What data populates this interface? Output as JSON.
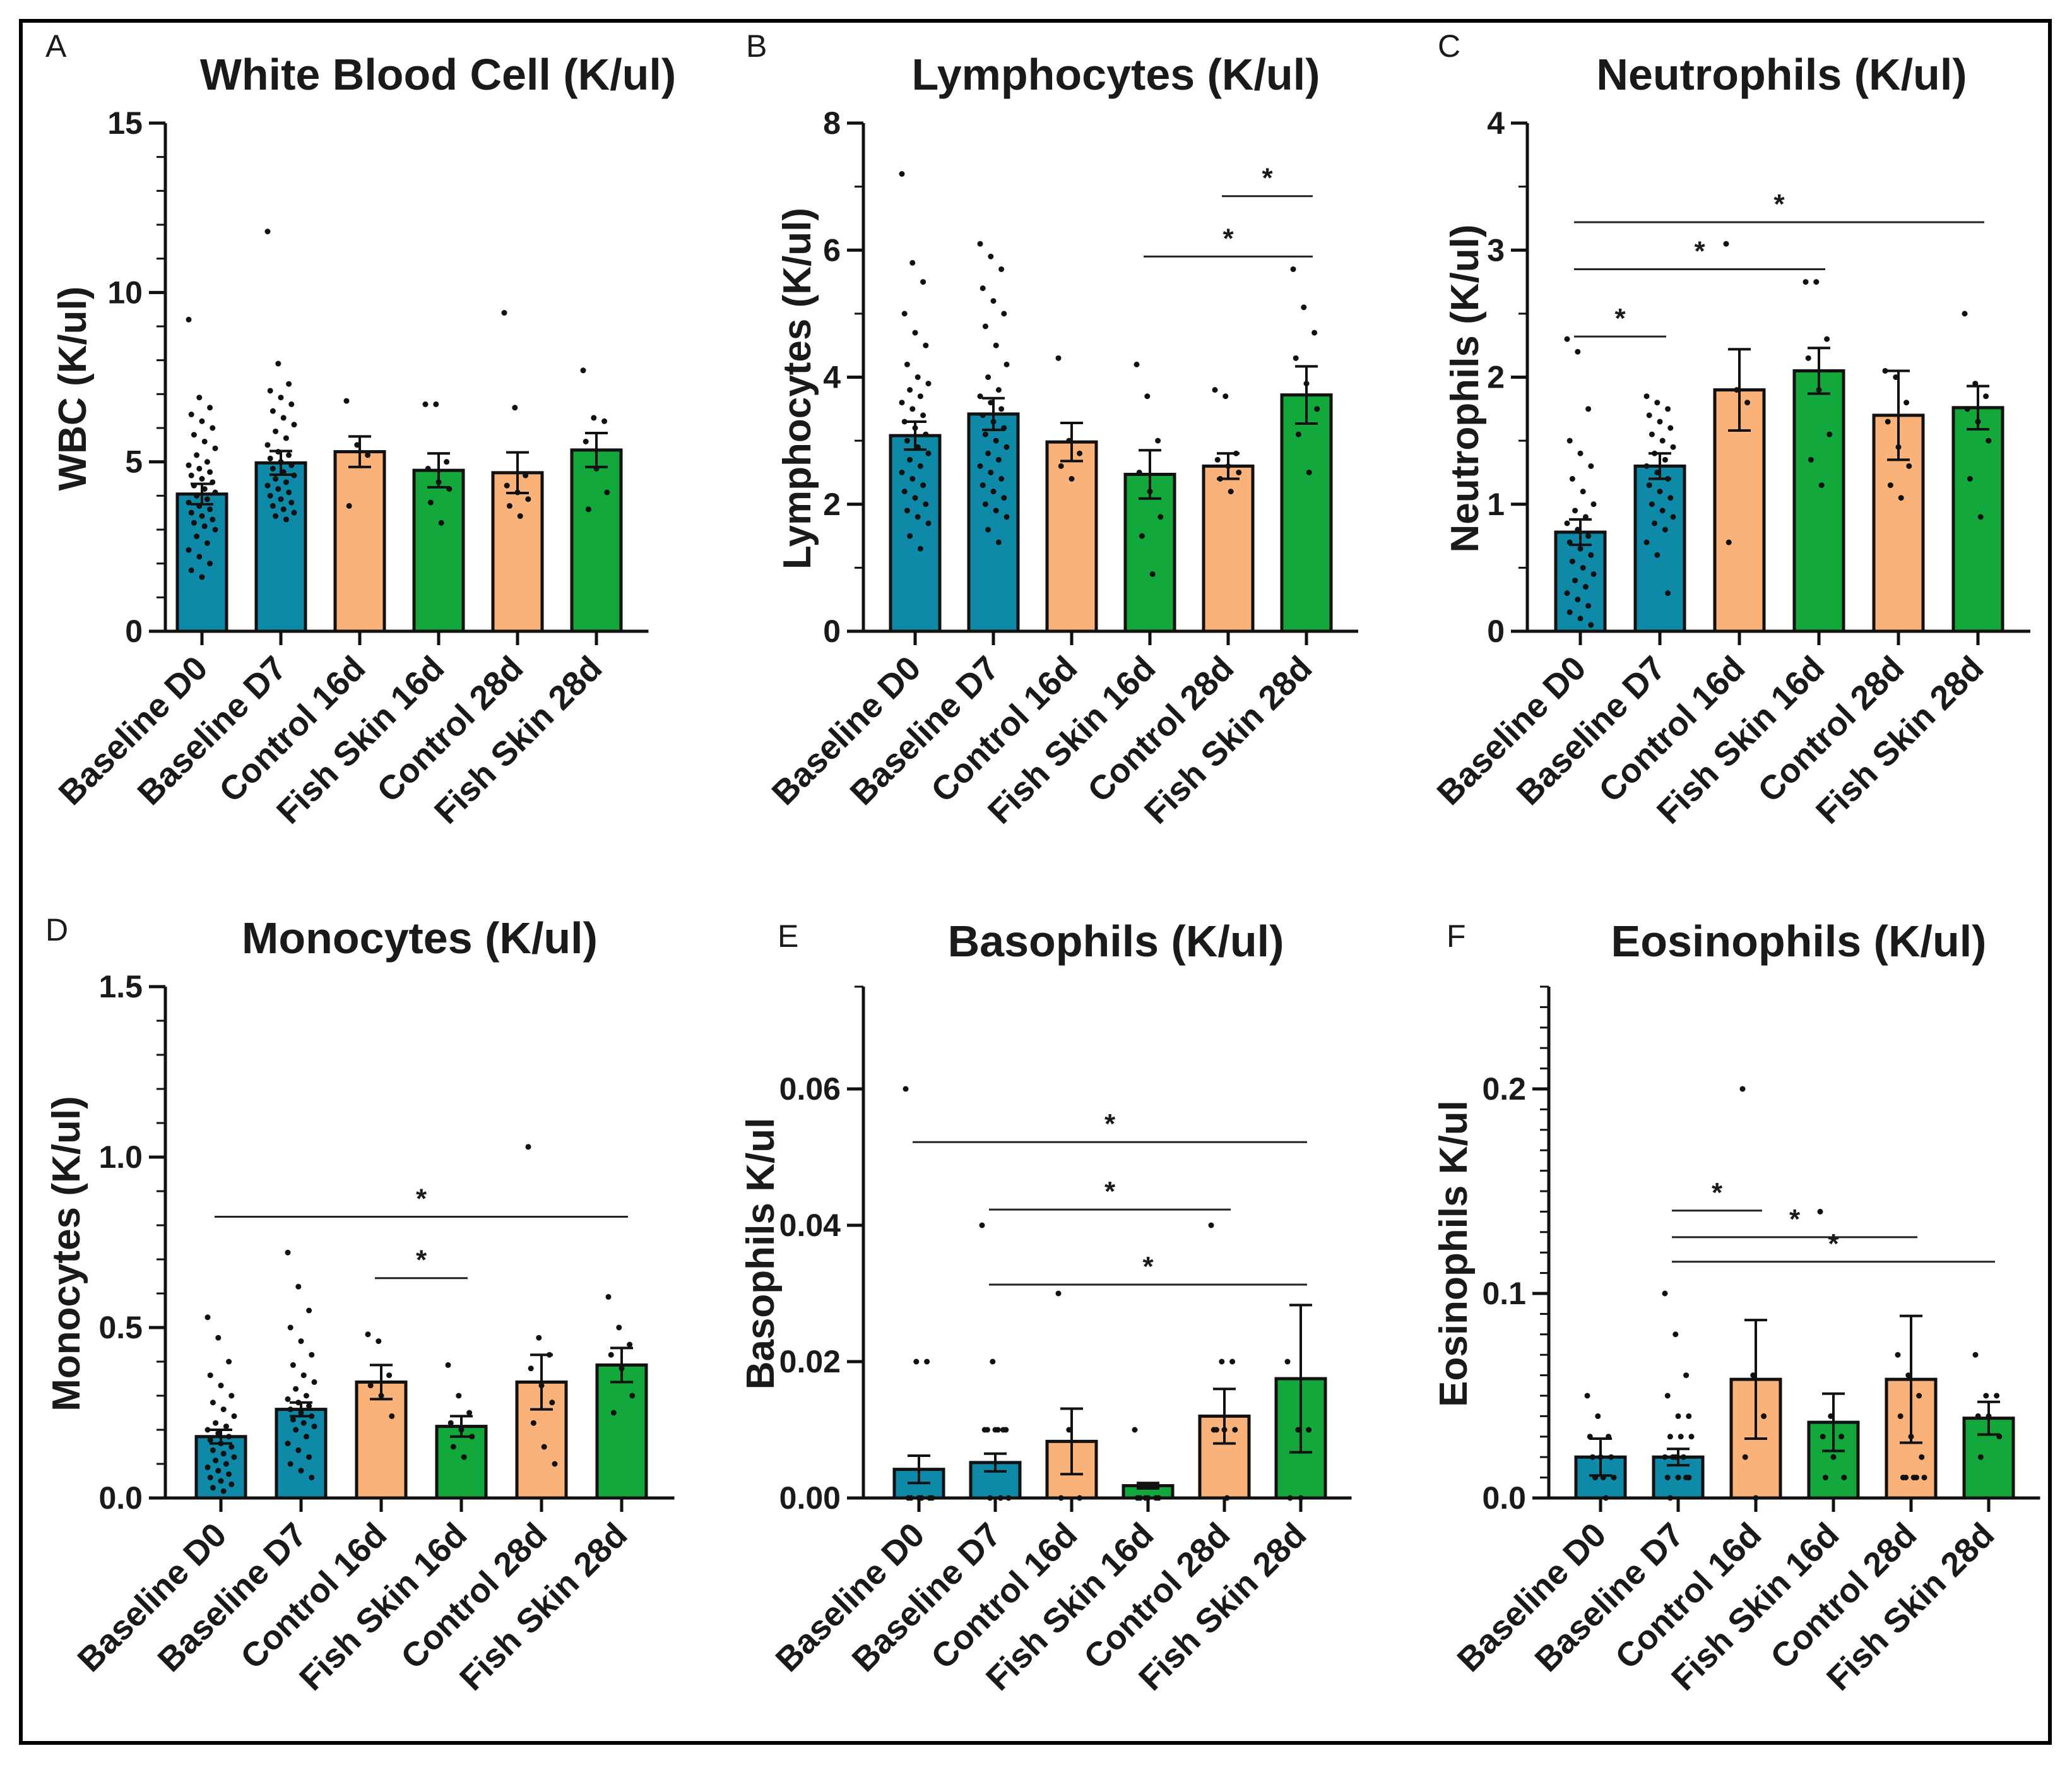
{
  "colors": {
    "baseline": "#0e8aa8",
    "control": "#f9b27a",
    "fish_skin": "#13a83b",
    "stroke": "#111111"
  },
  "chart_data": [
    {
      "letter": "A",
      "type": "bar",
      "title": "White Blood Cell (K/ul)",
      "ylabel": "WBC (K/ul)",
      "categories": [
        "Baseline D0",
        "Baseline D7",
        "Control 16d",
        "Fish Skin 16d",
        "Control 28d",
        "Fish Skin 28d"
      ],
      "values": [
        4.05,
        4.97,
        5.3,
        4.75,
        4.68,
        5.35
      ],
      "errors": [
        0.3,
        0.35,
        0.45,
        0.5,
        0.6,
        0.5
      ],
      "ylim": [
        0,
        15
      ],
      "yticks": [
        0,
        5,
        10,
        15
      ],
      "tick_labels": [
        "0",
        "5",
        "10",
        "15"
      ],
      "minor_ticks": 4,
      "points": [
        [
          9.2,
          6.9,
          6.6,
          6.4,
          6.2,
          6.0,
          5.8,
          5.6,
          5.4,
          5.2,
          5.0,
          4.9,
          4.8,
          4.7,
          4.6,
          4.5,
          4.4,
          4.3,
          4.2,
          4.1,
          4.0,
          3.9,
          3.8,
          3.7,
          3.6,
          3.5,
          3.4,
          3.3,
          3.2,
          3.1,
          3.0,
          2.8,
          2.6,
          2.4,
          2.2,
          2.0,
          1.8,
          1.6
        ],
        [
          11.8,
          7.9,
          7.3,
          7.1,
          6.9,
          6.7,
          6.5,
          6.3,
          6.1,
          5.9,
          5.7,
          5.5,
          5.3,
          5.2,
          5.1,
          5.0,
          4.9,
          4.8,
          4.7,
          4.6,
          4.5,
          4.4,
          4.3,
          4.2,
          4.1,
          4.0,
          3.9,
          3.8,
          3.7,
          3.6,
          3.5,
          3.4,
          3.3
        ],
        [
          6.8,
          5.5,
          5.2,
          3.7
        ],
        [
          6.7,
          6.7,
          5.0,
          4.8,
          4.4,
          4.2,
          3.8,
          3.2
        ],
        [
          9.4,
          6.6,
          4.6,
          4.3,
          4.1,
          3.9,
          3.7,
          3.4
        ],
        [
          7.7,
          6.3,
          6.2,
          5.6,
          4.8,
          4.1,
          3.6
        ]
      ],
      "significance": []
    },
    {
      "letter": "B",
      "type": "bar",
      "title": "Lymphocytes (K/ul)",
      "ylabel": "Lymphocytes (K/ul)",
      "categories": [
        "Baseline D0",
        "Baseline D7",
        "Control 16d",
        "Fish Skin 16d",
        "Control 28d",
        "Fish Skin 28d"
      ],
      "values": [
        3.08,
        3.42,
        2.98,
        2.47,
        2.6,
        3.72
      ],
      "errors": [
        0.22,
        0.25,
        0.3,
        0.38,
        0.2,
        0.45
      ],
      "ylim": [
        0,
        8
      ],
      "yticks": [
        0,
        2,
        4,
        6,
        8
      ],
      "tick_labels": [
        "0",
        "2",
        "4",
        "6",
        "8"
      ],
      "minor_ticks": 1,
      "points": [
        [
          7.2,
          5.8,
          5.5,
          5.0,
          4.7,
          4.5,
          4.2,
          4.0,
          3.9,
          3.8,
          3.7,
          3.6,
          3.5,
          3.4,
          3.3,
          3.2,
          3.1,
          3.0,
          2.9,
          2.8,
          2.7,
          2.6,
          2.5,
          2.4,
          2.3,
          2.2,
          2.1,
          2.0,
          1.9,
          1.8,
          1.7,
          1.5,
          1.3
        ],
        [
          6.1,
          5.9,
          5.7,
          5.4,
          5.2,
          5.0,
          4.8,
          4.5,
          4.2,
          4.0,
          3.8,
          3.7,
          3.6,
          3.5,
          3.4,
          3.3,
          3.2,
          3.1,
          3.0,
          2.9,
          2.8,
          2.7,
          2.6,
          2.5,
          2.4,
          2.3,
          2.2,
          2.1,
          2.0,
          1.9,
          1.8,
          1.6,
          1.4
        ],
        [
          4.3,
          3.0,
          2.8,
          2.6,
          2.4
        ],
        [
          4.2,
          3.7,
          3.0,
          2.5,
          2.2,
          1.8,
          1.5,
          0.9
        ],
        [
          3.8,
          3.7,
          2.8,
          2.7,
          2.6,
          2.5,
          2.4,
          2.2
        ],
        [
          5.7,
          5.1,
          4.7,
          4.3,
          3.9,
          3.5,
          3.1,
          2.5
        ]
      ],
      "significance": [
        {
          "from": 4,
          "to": 5,
          "y": 6.85,
          "label": "*"
        },
        {
          "from": 3,
          "to": 5,
          "y": 5.9,
          "label": "*"
        }
      ]
    },
    {
      "letter": "C",
      "type": "bar",
      "title": "Neutrophils (K/ul)",
      "ylabel": "Neutrophils (K/ul)",
      "categories": [
        "Baseline D0",
        "Baseline D7",
        "Control 16d",
        "Fish Skin 16d",
        "Control 28d",
        "Fish Skin 28d"
      ],
      "values": [
        0.78,
        1.3,
        1.9,
        2.05,
        1.7,
        1.76
      ],
      "errors": [
        0.1,
        0.1,
        0.32,
        0.18,
        0.35,
        0.17
      ],
      "ylim": [
        0,
        4
      ],
      "yticks": [
        0,
        1,
        2,
        3,
        4
      ],
      "tick_labels": [
        "0",
        "1",
        "2",
        "3",
        "4"
      ],
      "minor_ticks": 1,
      "points": [
        [
          2.3,
          2.2,
          1.75,
          1.5,
          1.4,
          1.3,
          1.2,
          1.1,
          1.0,
          0.95,
          0.9,
          0.85,
          0.8,
          0.75,
          0.7,
          0.65,
          0.6,
          0.55,
          0.5,
          0.45,
          0.4,
          0.35,
          0.3,
          0.25,
          0.2,
          0.15,
          0.1,
          0.05
        ],
        [
          1.85,
          1.8,
          1.75,
          1.7,
          1.65,
          1.6,
          1.55,
          1.5,
          1.45,
          1.4,
          1.35,
          1.3,
          1.25,
          1.2,
          1.15,
          1.1,
          1.05,
          1.0,
          0.95,
          0.9,
          0.85,
          0.8,
          0.7,
          0.6,
          0.3
        ],
        [
          3.05,
          1.9,
          1.8,
          0.7
        ],
        [
          2.75,
          2.75,
          2.3,
          2.15,
          1.9,
          1.55,
          1.35,
          1.15
        ],
        [
          2.05,
          2.0,
          1.8,
          1.65,
          1.45,
          1.3,
          1.15,
          1.05
        ],
        [
          2.5,
          1.95,
          1.85,
          1.75,
          1.65,
          1.5,
          1.2,
          0.9
        ]
      ],
      "significance": [
        {
          "from": 0,
          "to": 1,
          "y": 2.32,
          "label": "*"
        },
        {
          "from": 0,
          "to": 3,
          "y": 2.85,
          "label": "*"
        },
        {
          "from": 0,
          "to": 5,
          "y": 3.22,
          "label": "*"
        }
      ]
    },
    {
      "letter": "D",
      "type": "bar",
      "title": "Monocytes (K/ul)",
      "ylabel": "Monocytes (K/ul)",
      "categories": [
        "Baseline D0",
        "Baseline D7",
        "Control 16d",
        "Fish Skin 16d",
        "Control 28d",
        "Fish Skin 28d"
      ],
      "values": [
        0.18,
        0.26,
        0.34,
        0.21,
        0.34,
        0.39
      ],
      "errors": [
        0.02,
        0.02,
        0.05,
        0.03,
        0.08,
        0.05
      ],
      "ylim": [
        0,
        1.5
      ],
      "yticks": [
        0,
        0.5,
        1.0,
        1.5
      ],
      "tick_labels": [
        "0.0",
        "0.5",
        "1.0",
        "1.5"
      ],
      "minor_ticks": 4,
      "points": [
        [
          0.53,
          0.47,
          0.4,
          0.36,
          0.33,
          0.3,
          0.28,
          0.26,
          0.24,
          0.22,
          0.21,
          0.2,
          0.19,
          0.18,
          0.17,
          0.16,
          0.15,
          0.14,
          0.13,
          0.12,
          0.11,
          0.1,
          0.09,
          0.08,
          0.07,
          0.06,
          0.05,
          0.04,
          0.03,
          0.02
        ],
        [
          0.72,
          0.62,
          0.55,
          0.5,
          0.46,
          0.42,
          0.39,
          0.36,
          0.34,
          0.32,
          0.3,
          0.29,
          0.28,
          0.27,
          0.26,
          0.25,
          0.24,
          0.23,
          0.22,
          0.21,
          0.2,
          0.18,
          0.16,
          0.14,
          0.12,
          0.1,
          0.08,
          0.06
        ],
        [
          0.48,
          0.46,
          0.36,
          0.33,
          0.3,
          0.24
        ],
        [
          0.39,
          0.3,
          0.25,
          0.22,
          0.2,
          0.18,
          0.15,
          0.12
        ],
        [
          1.03,
          0.47,
          0.42,
          0.38,
          0.33,
          0.28,
          0.22,
          0.15,
          0.1
        ],
        [
          0.59,
          0.5,
          0.45,
          0.42,
          0.38,
          0.3,
          0.25
        ]
      ],
      "significance": [
        {
          "from": 0,
          "to": 5,
          "y": 0.825,
          "label": "*"
        },
        {
          "from": 2,
          "to": 3,
          "y": 0.645,
          "label": "*"
        }
      ]
    },
    {
      "letter": "E",
      "type": "bar",
      "title": "Basophils (K/ul)",
      "ylabel": "Basophils K/ul",
      "categories": [
        "Baseline D0",
        "Baseline D7",
        "Control 16d",
        "Fish Skin 16d",
        "Control 28d",
        "Fish Skin 28d"
      ],
      "values": [
        0.0042,
        0.0052,
        0.0083,
        0.0018,
        0.012,
        0.0175
      ],
      "errors": [
        0.002,
        0.0013,
        0.0048,
        0.0004,
        0.004,
        0.0108
      ],
      "ylim": [
        0,
        0.075
      ],
      "yticks": [
        0,
        0.02,
        0.04,
        0.06
      ],
      "tick_labels": [
        "0.00",
        "0.02",
        "0.04",
        "0.06"
      ],
      "minor_ticks": 0,
      "points": [
        [
          0.06,
          0.02,
          0.02,
          0.0,
          0.0,
          0.0,
          0.0,
          0.0,
          0.0
        ],
        [
          0.04,
          0.02,
          0.01,
          0.01,
          0.01,
          0.01,
          0.01,
          0.01,
          0.0,
          0.0,
          0.0
        ],
        [
          0.03,
          0.01,
          0.0,
          0.0
        ],
        [
          0.01,
          0.0,
          0.0,
          0.0,
          0.0,
          0.0,
          0.0
        ],
        [
          0.04,
          0.02,
          0.02,
          0.01,
          0.01,
          0.01,
          0.01,
          0.0
        ],
        [
          0.02,
          0.01,
          0.01,
          0.0,
          0.0
        ]
      ],
      "significance": [
        {
          "from": 0,
          "to": 5,
          "y": 0.0522,
          "label": "*"
        },
        {
          "from": 1,
          "to": 4,
          "y": 0.0423,
          "label": "*"
        },
        {
          "from": 1,
          "to": 5,
          "y": 0.0313,
          "label": "*"
        }
      ]
    },
    {
      "letter": "F",
      "type": "bar",
      "title": "Eosinophils (K/ul)",
      "ylabel": "Eosinophils K/ul",
      "categories": [
        "Baseline D0",
        "Baseline D7",
        "Control 16d",
        "Fish Skin 16d",
        "Control 28d",
        "Fish Skin 28d"
      ],
      "values": [
        0.02,
        0.02,
        0.058,
        0.037,
        0.058,
        0.039
      ],
      "errors": [
        0.009,
        0.004,
        0.029,
        0.014,
        0.031,
        0.008
      ],
      "ylim": [
        0,
        0.25
      ],
      "yticks": [
        0,
        0.1,
        0.2
      ],
      "tick_labels": [
        "0.0",
        "0.1",
        "0.2"
      ],
      "minor_ticks": 9,
      "points": [
        [
          0.05,
          0.04,
          0.03,
          0.03,
          0.02,
          0.02,
          0.02,
          0.01,
          0.01,
          0.01,
          0.0
        ],
        [
          0.1,
          0.08,
          0.06,
          0.05,
          0.04,
          0.04,
          0.03,
          0.03,
          0.03,
          0.02,
          0.02,
          0.02,
          0.02,
          0.01,
          0.01,
          0.01,
          0.01,
          0.0
        ],
        [
          0.2,
          0.06,
          0.04,
          0.02,
          0.0
        ],
        [
          0.14,
          0.04,
          0.03,
          0.03,
          0.02,
          0.01,
          0.01
        ],
        [
          0.07,
          0.06,
          0.05,
          0.04,
          0.03,
          0.02,
          0.01,
          0.01,
          0.01,
          0.01,
          0.01
        ],
        [
          0.07,
          0.05,
          0.05,
          0.04,
          0.04,
          0.03,
          0.02
        ]
      ],
      "significance": [
        {
          "from": 1,
          "to": 2,
          "y": 0.1405,
          "label": "*"
        },
        {
          "from": 1,
          "to": 4,
          "y": 0.1275,
          "label": "*"
        },
        {
          "from": 1,
          "to": 5,
          "y": 0.1155,
          "label": "*"
        }
      ]
    }
  ]
}
